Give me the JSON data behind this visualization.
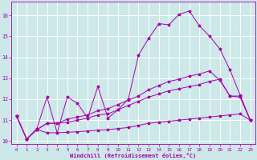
{
  "background_color": "#cce8e8",
  "grid_color": "#ffffff",
  "line_color": "#aa00aa",
  "xlabel": "Windchill (Refroidissement éolien,°C)",
  "xlabel_color": "#aa00aa",
  "xlim": [
    -0.5,
    23.5
  ],
  "ylim": [
    9.85,
    16.65
  ],
  "yticks": [
    10,
    11,
    12,
    13,
    14,
    15,
    16
  ],
  "xticks": [
    0,
    1,
    2,
    3,
    4,
    5,
    6,
    7,
    8,
    9,
    10,
    11,
    12,
    13,
    14,
    15,
    16,
    17,
    18,
    19,
    20,
    21,
    22,
    23
  ],
  "line1_x": [
    0,
    1,
    2,
    3,
    4,
    5,
    6,
    7,
    8,
    9,
    10,
    11,
    12,
    13,
    14,
    15,
    16,
    17,
    18,
    19,
    20,
    21,
    22,
    23
  ],
  "line1_y": [
    11.2,
    10.1,
    10.6,
    12.1,
    10.4,
    12.1,
    11.8,
    11.1,
    12.6,
    11.1,
    11.5,
    12.0,
    14.1,
    14.9,
    15.6,
    15.55,
    16.05,
    16.2,
    15.5,
    15.0,
    14.4,
    13.4,
    12.2,
    11.0
  ],
  "line2_x": [
    0,
    1,
    2,
    3,
    4,
    5,
    6,
    7,
    8,
    9,
    10,
    11,
    12,
    13,
    14,
    15,
    16,
    17,
    18,
    19,
    20,
    21,
    22,
    23
  ],
  "line2_y": [
    11.2,
    10.1,
    10.55,
    10.4,
    10.4,
    10.42,
    10.45,
    10.48,
    10.52,
    10.55,
    10.6,
    10.65,
    10.75,
    10.85,
    10.9,
    10.95,
    11.0,
    11.05,
    11.1,
    11.15,
    11.2,
    11.25,
    11.3,
    11.0
  ],
  "line3_x": [
    0,
    1,
    2,
    3,
    4,
    5,
    6,
    7,
    8,
    9,
    10,
    11,
    12,
    13,
    14,
    15,
    16,
    17,
    18,
    19,
    20,
    21,
    22,
    23
  ],
  "line3_y": [
    11.2,
    10.1,
    10.55,
    10.85,
    10.85,
    10.9,
    11.0,
    11.1,
    11.25,
    11.3,
    11.5,
    11.7,
    11.9,
    12.1,
    12.25,
    12.4,
    12.5,
    12.6,
    12.7,
    12.85,
    12.95,
    12.15,
    12.15,
    11.0
  ],
  "line4_x": [
    0,
    1,
    2,
    3,
    4,
    5,
    6,
    7,
    8,
    9,
    10,
    11,
    12,
    13,
    14,
    15,
    16,
    17,
    18,
    19,
    20,
    21,
    22,
    23
  ],
  "line4_y": [
    11.2,
    10.1,
    10.55,
    10.85,
    10.85,
    11.05,
    11.15,
    11.25,
    11.45,
    11.55,
    11.75,
    11.95,
    12.15,
    12.45,
    12.65,
    12.85,
    12.95,
    13.1,
    13.2,
    13.35,
    12.9,
    12.15,
    12.1,
    11.0
  ],
  "spine_color": "#aa00aa"
}
